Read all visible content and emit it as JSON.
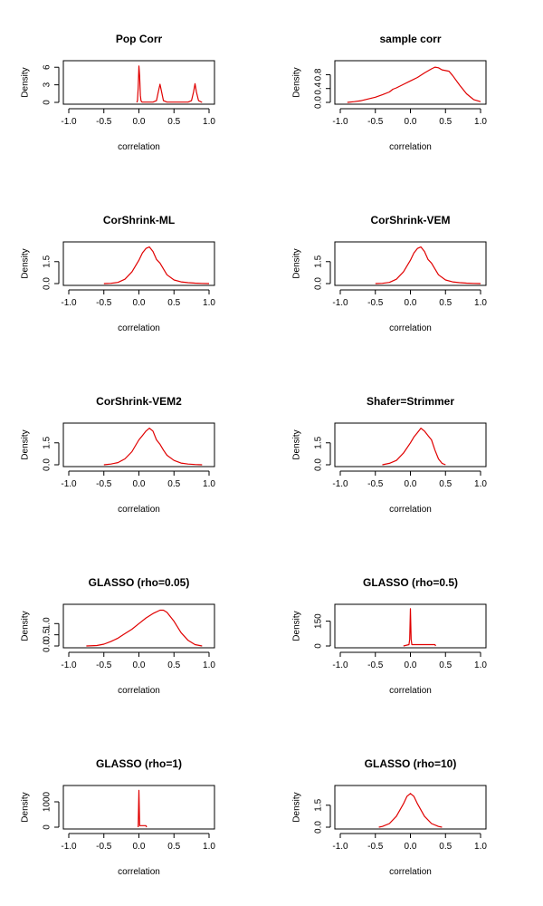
{
  "colors": {
    "line": "#e00000",
    "axis": "#000000",
    "background": "#ffffff"
  },
  "chart_data": [
    {
      "type": "line",
      "title": "Pop Corr",
      "xlabel": "correlation",
      "ylabel": "Density",
      "xlim": [
        -1.0,
        1.0
      ],
      "ylim": [
        0,
        6.5
      ],
      "xticks": [
        -1.0,
        -0.5,
        0.0,
        0.5,
        1.0
      ],
      "xtick_labels": [
        "-1.0",
        "-0.5",
        "0.0",
        "0.5",
        "1.0"
      ],
      "yticks": [
        0,
        3,
        6
      ],
      "ytick_labels": [
        "0",
        "3",
        "6"
      ],
      "series": [
        {
          "x": [
            -0.03,
            -0.02,
            -0.01,
            0.0,
            0.01,
            0.02,
            0.03,
            0.04,
            0.05,
            0.1,
            0.2,
            0.25,
            0.28,
            0.3,
            0.32,
            0.35,
            0.4,
            0.5,
            0.7,
            0.75,
            0.78,
            0.8,
            0.82,
            0.85,
            0.9
          ],
          "y": [
            0,
            0.3,
            2.5,
            6.2,
            4.5,
            1.2,
            0.3,
            0.1,
            0.05,
            0.05,
            0.05,
            0.3,
            2.0,
            3.1,
            2.0,
            0.3,
            0.05,
            0.05,
            0.05,
            0.3,
            1.8,
            3.2,
            1.8,
            0.3,
            0
          ]
        }
      ]
    },
    {
      "type": "line",
      "title": "sample corr",
      "xlabel": "correlation",
      "ylabel": "Density",
      "xlim": [
        -1.0,
        1.0
      ],
      "ylim": [
        0,
        1.1
      ],
      "xticks": [
        -1.0,
        -0.5,
        0.0,
        0.5,
        1.0
      ],
      "xtick_labels": [
        "-1.0",
        "-0.5",
        "0.0",
        "0.5",
        "1.0"
      ],
      "yticks": [
        0.0,
        0.4,
        0.8
      ],
      "ytick_labels": [
        "0.0",
        "0.4",
        "0.8"
      ],
      "series": [
        {
          "x": [
            -0.9,
            -0.8,
            -0.7,
            -0.6,
            -0.5,
            -0.4,
            -0.3,
            -0.25,
            -0.2,
            -0.1,
            0.0,
            0.1,
            0.2,
            0.3,
            0.35,
            0.4,
            0.45,
            0.5,
            0.55,
            0.6,
            0.7,
            0.8,
            0.9,
            1.0
          ],
          "y": [
            0.0,
            0.02,
            0.05,
            0.1,
            0.15,
            0.22,
            0.3,
            0.38,
            0.42,
            0.52,
            0.62,
            0.72,
            0.85,
            0.97,
            1.02,
            1.0,
            0.94,
            0.92,
            0.9,
            0.78,
            0.5,
            0.25,
            0.08,
            0.02
          ]
        }
      ]
    },
    {
      "type": "line",
      "title": "CorShrink-ML",
      "xlabel": "correlation",
      "ylabel": "Density",
      "xlim": [
        -1.0,
        1.0
      ],
      "ylim": [
        0,
        2.6
      ],
      "xticks": [
        -1.0,
        -0.5,
        0.0,
        0.5,
        1.0
      ],
      "xtick_labels": [
        "-1.0",
        "-0.5",
        "0.0",
        "0.5",
        "1.0"
      ],
      "yticks": [
        0.0,
        1.5
      ],
      "ytick_labels": [
        "0.0",
        "1.5"
      ],
      "series": [
        {
          "x": [
            -0.5,
            -0.4,
            -0.3,
            -0.2,
            -0.1,
            0.0,
            0.05,
            0.1,
            0.15,
            0.2,
            0.25,
            0.3,
            0.35,
            0.4,
            0.5,
            0.6,
            0.7,
            0.8,
            0.9,
            1.0
          ],
          "y": [
            0.0,
            0.02,
            0.08,
            0.3,
            0.8,
            1.6,
            2.1,
            2.4,
            2.5,
            2.2,
            1.65,
            1.4,
            1.0,
            0.6,
            0.25,
            0.12,
            0.06,
            0.03,
            0.01,
            0.0
          ]
        }
      ]
    },
    {
      "type": "line",
      "title": "CorShrink-VEM",
      "xlabel": "correlation",
      "ylabel": "Density",
      "xlim": [
        -1.0,
        1.0
      ],
      "ylim": [
        0,
        2.6
      ],
      "xticks": [
        -1.0,
        -0.5,
        0.0,
        0.5,
        1.0
      ],
      "xtick_labels": [
        "-1.0",
        "-0.5",
        "0.0",
        "0.5",
        "1.0"
      ],
      "yticks": [
        0.0,
        1.5
      ],
      "ytick_labels": [
        "0.0",
        "1.5"
      ],
      "series": [
        {
          "x": [
            -0.5,
            -0.4,
            -0.3,
            -0.2,
            -0.1,
            0.0,
            0.05,
            0.1,
            0.15,
            0.2,
            0.25,
            0.3,
            0.35,
            0.4,
            0.5,
            0.6,
            0.7,
            0.8,
            0.9,
            1.0
          ],
          "y": [
            0.0,
            0.02,
            0.08,
            0.3,
            0.8,
            1.6,
            2.1,
            2.4,
            2.5,
            2.2,
            1.65,
            1.4,
            1.0,
            0.6,
            0.25,
            0.12,
            0.06,
            0.03,
            0.01,
            0.0
          ]
        }
      ]
    },
    {
      "type": "line",
      "title": "CorShrink-VEM2",
      "xlabel": "correlation",
      "ylabel": "Density",
      "xlim": [
        -1.0,
        1.0
      ],
      "ylim": [
        0,
        2.6
      ],
      "xticks": [
        -1.0,
        -0.5,
        0.0,
        0.5,
        1.0
      ],
      "xtick_labels": [
        "-1.0",
        "-0.5",
        "0.0",
        "0.5",
        "1.0"
      ],
      "yticks": [
        0.0,
        1.5
      ],
      "ytick_labels": [
        "0.0",
        "1.5"
      ],
      "series": [
        {
          "x": [
            -0.5,
            -0.4,
            -0.3,
            -0.2,
            -0.1,
            -0.05,
            0.0,
            0.05,
            0.1,
            0.15,
            0.2,
            0.25,
            0.3,
            0.35,
            0.4,
            0.5,
            0.6,
            0.7,
            0.8,
            0.9
          ],
          "y": [
            0.0,
            0.05,
            0.15,
            0.4,
            0.9,
            1.3,
            1.7,
            2.0,
            2.3,
            2.5,
            2.3,
            1.7,
            1.4,
            1.0,
            0.65,
            0.3,
            0.12,
            0.05,
            0.02,
            0.0
          ]
        }
      ]
    },
    {
      "type": "line",
      "title": "Shafer=Strimmer",
      "xlabel": "correlation",
      "ylabel": "Density",
      "xlim": [
        -1.0,
        1.0
      ],
      "ylim": [
        0,
        2.6
      ],
      "xticks": [
        -1.0,
        -0.5,
        0.0,
        0.5,
        1.0
      ],
      "xtick_labels": [
        "-1.0",
        "-0.5",
        "0.0",
        "0.5",
        "1.0"
      ],
      "yticks": [
        0.0,
        1.5
      ],
      "ytick_labels": [
        "0.0",
        "1.5"
      ],
      "series": [
        {
          "x": [
            -0.4,
            -0.3,
            -0.2,
            -0.1,
            0.0,
            0.05,
            0.1,
            0.15,
            0.2,
            0.25,
            0.3,
            0.35,
            0.4,
            0.45,
            0.5
          ],
          "y": [
            0.0,
            0.1,
            0.3,
            0.8,
            1.5,
            1.9,
            2.2,
            2.5,
            2.3,
            2.0,
            1.7,
            1.0,
            0.4,
            0.1,
            0.0
          ]
        }
      ]
    },
    {
      "type": "line",
      "title": "GLASSO (rho=0.05)",
      "xlabel": "correlation",
      "ylabel": "Density",
      "xlim": [
        -1.0,
        1.0
      ],
      "ylim": [
        0,
        1.7
      ],
      "xticks": [
        -1.0,
        -0.5,
        0.0,
        0.5,
        1.0
      ],
      "xtick_labels": [
        "-1.0",
        "-0.5",
        "0.0",
        "0.5",
        "1.0"
      ],
      "yticks": [
        0.0,
        0.5,
        1.0
      ],
      "ytick_labels": [
        "0.0",
        "0.5",
        "1.0"
      ],
      "series": [
        {
          "x": [
            -0.75,
            -0.6,
            -0.5,
            -0.4,
            -0.3,
            -0.2,
            -0.1,
            0.0,
            0.1,
            0.2,
            0.3,
            0.35,
            0.4,
            0.5,
            0.6,
            0.7,
            0.8,
            0.9
          ],
          "y": [
            0.0,
            0.02,
            0.08,
            0.2,
            0.35,
            0.55,
            0.75,
            1.0,
            1.25,
            1.45,
            1.6,
            1.6,
            1.5,
            1.1,
            0.6,
            0.25,
            0.06,
            0.0
          ]
        }
      ]
    },
    {
      "type": "line",
      "title": "GLASSO (rho=0.5)",
      "xlabel": "correlation",
      "ylabel": "Density",
      "xlim": [
        -1.0,
        1.0
      ],
      "ylim": [
        0,
        230
      ],
      "xticks": [
        -1.0,
        -0.5,
        0.0,
        0.5,
        1.0
      ],
      "xtick_labels": [
        "-1.0",
        "-0.5",
        "0.0",
        "0.5",
        "1.0"
      ],
      "yticks": [
        0,
        150
      ],
      "ytick_labels": [
        "0",
        "150"
      ],
      "series": [
        {
          "x": [
            -0.1,
            -0.02,
            -0.01,
            0.0,
            0.01,
            0.02,
            0.35,
            0.36
          ],
          "y": [
            0,
            8,
            40,
            225,
            40,
            8,
            8,
            0
          ]
        }
      ]
    },
    {
      "type": "line",
      "title": "GLASSO (rho=1)",
      "xlabel": "correlation",
      "ylabel": "Density",
      "xlim": [
        -1.0,
        1.0
      ],
      "ylim": [
        0,
        1500
      ],
      "xticks": [
        -1.0,
        -0.5,
        0.0,
        0.5,
        1.0
      ],
      "xtick_labels": [
        "-1.0",
        "-0.5",
        "0.0",
        "0.5",
        "1.0"
      ],
      "yticks": [
        0,
        1000
      ],
      "ytick_labels": [
        "0",
        "1000"
      ],
      "series": [
        {
          "x": [
            -0.01,
            0.0,
            0.01,
            0.1,
            0.11
          ],
          "y": [
            0,
            1450,
            60,
            60,
            0
          ]
        }
      ]
    },
    {
      "type": "line",
      "title": "GLASSO (rho=10)",
      "xlabel": "correlation",
      "ylabel": "Density",
      "xlim": [
        -1.0,
        1.0
      ],
      "ylim": [
        0,
        2.6
      ],
      "xticks": [
        -1.0,
        -0.5,
        0.0,
        0.5,
        1.0
      ],
      "xtick_labels": [
        "-1.0",
        "-0.5",
        "0.0",
        "0.5",
        "1.0"
      ],
      "yticks": [
        0.0,
        1.5
      ],
      "ytick_labels": [
        "0.0",
        "1.5"
      ],
      "series": [
        {
          "x": [
            -0.45,
            -0.4,
            -0.3,
            -0.2,
            -0.1,
            -0.05,
            0.0,
            0.05,
            0.1,
            0.2,
            0.3,
            0.4,
            0.45
          ],
          "y": [
            0.0,
            0.05,
            0.25,
            0.75,
            1.6,
            2.1,
            2.3,
            2.1,
            1.6,
            0.75,
            0.25,
            0.05,
            0.0
          ]
        }
      ]
    }
  ]
}
